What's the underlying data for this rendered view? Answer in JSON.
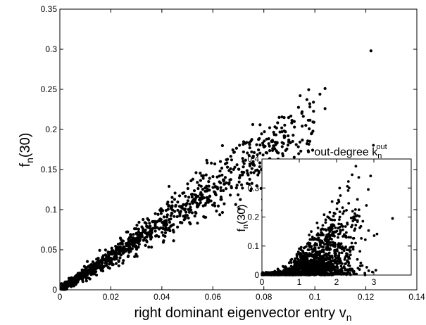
{
  "chart_data": [
    {
      "id": "main",
      "type": "scatter",
      "xlabel": "right dominant eigenvector entry v",
      "xlabel_subscript": "n",
      "ylabel": "f",
      "ylabel_subscript": "n",
      "ylabel_suffix": "(30)",
      "xlim": [
        0,
        0.14
      ],
      "ylim": [
        0,
        0.35
      ],
      "xticks": [
        "0",
        "0.02",
        "0.04",
        "0.06",
        "0.08",
        "0.1",
        "0.12",
        "0.14"
      ],
      "yticks": [
        "0",
        "0.05",
        "0.1",
        "0.15",
        "0.2",
        "0.25",
        "0.3",
        "0.35"
      ],
      "grid": false,
      "trend": {
        "slope": 2.1,
        "noise_frac": 0.13,
        "n_points": 1400
      },
      "notable_points": [
        {
          "x": 0.122,
          "y": 0.298
        },
        {
          "x": 0.104,
          "y": 0.251
        },
        {
          "x": 0.104,
          "y": 0.226
        },
        {
          "x": 0.102,
          "y": 0.244
        },
        {
          "x": 0.098,
          "y": 0.232
        },
        {
          "x": 0.095,
          "y": 0.222
        },
        {
          "x": 0.092,
          "y": 0.203
        },
        {
          "x": 0.088,
          "y": 0.198
        },
        {
          "x": 0.086,
          "y": 0.215
        }
      ]
    },
    {
      "id": "inset",
      "type": "scatter",
      "title": "out-degree k",
      "title_subscript": "n",
      "title_superscript": "out",
      "ylabel": "f",
      "ylabel_subscript": "n",
      "ylabel_suffix": "(30)",
      "xlim": [
        0,
        4
      ],
      "ylim": [
        0,
        0.4
      ],
      "xticks": [
        "0",
        "1",
        "2",
        "3"
      ],
      "yticks": [
        "0",
        "0.1",
        "0.2",
        "0.3",
        "0.4"
      ],
      "grid": false,
      "trend": {
        "n_points": 1300
      },
      "notable_points": [
        {
          "x": 3.5,
          "y": 0.195
        },
        {
          "x": 2.85,
          "y": 0.295
        },
        {
          "x": 2.8,
          "y": 0.24
        },
        {
          "x": 2.6,
          "y": 0.225
        },
        {
          "x": 2.2,
          "y": 0.22
        }
      ]
    }
  ]
}
